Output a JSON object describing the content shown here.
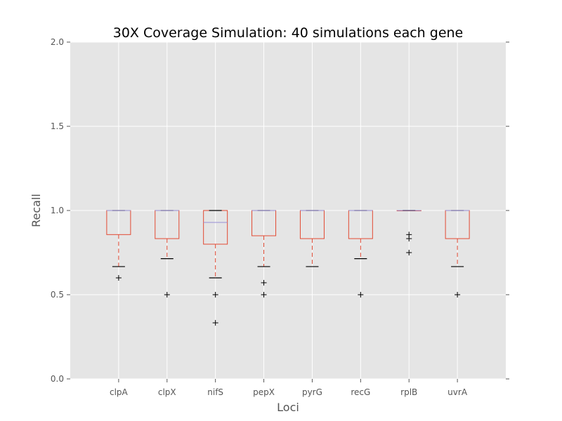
{
  "chart_data": {
    "type": "box",
    "title": "30X Coverage Simulation: 40 simulations each gene",
    "xlabel": "Loci",
    "ylabel": "Recall",
    "ylim": [
      0.0,
      2.0
    ],
    "yticks": [
      "0.0",
      "0.5",
      "1.0",
      "1.5",
      "2.0"
    ],
    "grid": true,
    "colors": {
      "background": "#e5e5e5",
      "grid": "#ffffff",
      "box": "#e24a33",
      "median": "#988ed5",
      "cap": "#000000",
      "flier": "#000000",
      "axis_text": "#555555"
    },
    "categories": [
      "clpA",
      "clpX",
      "nifS",
      "pepX",
      "pyrG",
      "recG",
      "rplB",
      "uvrA"
    ],
    "boxes": [
      {
        "label": "clpA",
        "whisker_low": 0.667,
        "q1": 0.857,
        "median": 1.0,
        "q3": 1.0,
        "whisker_high": 1.0,
        "fliers": [
          0.6
        ]
      },
      {
        "label": "clpX",
        "whisker_low": 0.714,
        "q1": 0.833,
        "median": 1.0,
        "q3": 1.0,
        "whisker_high": 1.0,
        "fliers": [
          0.5
        ]
      },
      {
        "label": "nifS",
        "whisker_low": 0.6,
        "q1": 0.8,
        "median": 0.929,
        "q3": 1.0,
        "whisker_high": 1.0,
        "fliers": [
          0.5,
          0.333
        ]
      },
      {
        "label": "pepX",
        "whisker_low": 0.667,
        "q1": 0.85,
        "median": 1.0,
        "q3": 1.0,
        "whisker_high": 1.0,
        "fliers": [
          0.571,
          0.5
        ]
      },
      {
        "label": "pyrG",
        "whisker_low": 0.667,
        "q1": 0.833,
        "median": 1.0,
        "q3": 1.0,
        "whisker_high": 1.0,
        "fliers": []
      },
      {
        "label": "recG",
        "whisker_low": 0.714,
        "q1": 0.833,
        "median": 1.0,
        "q3": 1.0,
        "whisker_high": 1.0,
        "fliers": [
          0.5
        ]
      },
      {
        "label": "rplB",
        "whisker_low": 1.0,
        "q1": 1.0,
        "median": 1.0,
        "q3": 1.0,
        "whisker_high": 1.0,
        "fliers": [
          0.857,
          0.833,
          0.75
        ]
      },
      {
        "label": "uvrA",
        "whisker_low": 0.667,
        "q1": 0.833,
        "median": 1.0,
        "q3": 1.0,
        "whisker_high": 1.0,
        "fliers": [
          0.5
        ]
      }
    ]
  }
}
